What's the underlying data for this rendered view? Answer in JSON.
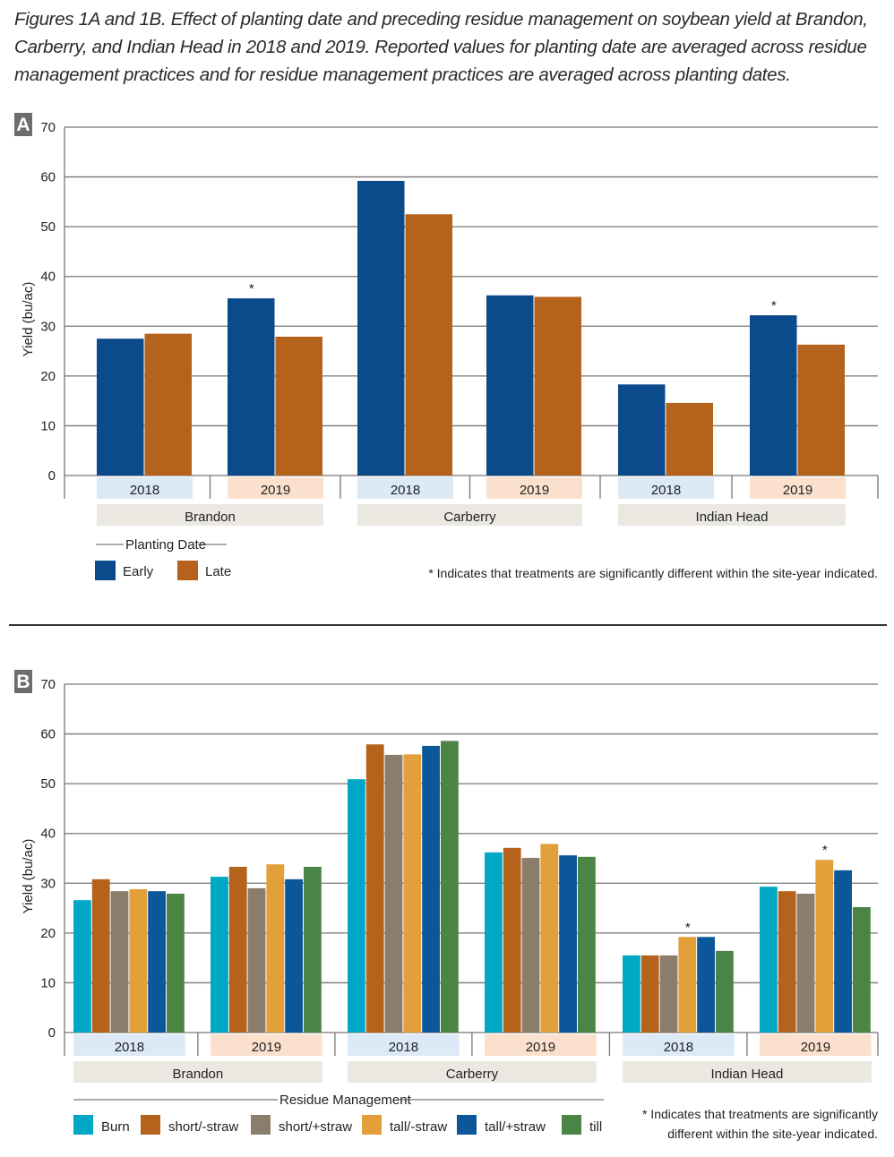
{
  "caption": "Figures 1A and 1B. Effect of planting date and preceding residue management on soybean yield at Brandon, Carberry, and Indian Head in 2018 and 2019. Reported values for planting date are averaged across residue management practices and for residue management practices are averaged across planting dates.",
  "chart_data": [
    {
      "panel": "A",
      "type": "bar",
      "ylabel": "Yield (bu/ac)",
      "ylim": [
        0,
        70
      ],
      "yticks": [
        "0",
        "10",
        "20",
        "30",
        "40",
        "50",
        "60",
        "70"
      ],
      "grid": true,
      "sites": [
        "Brandon",
        "Carberry",
        "Indian Head"
      ],
      "years": [
        "2018",
        "2019"
      ],
      "legend_title": "Planting Date",
      "legend_placement": "bottom-left",
      "series": [
        {
          "name": "Early",
          "color": "#0b4a8b",
          "values": [
            27.5,
            35.6,
            59.2,
            36.2,
            18.3,
            32.2
          ]
        },
        {
          "name": "Late",
          "color": "#b5621c",
          "values": [
            28.5,
            27.9,
            52.5,
            35.9,
            14.6,
            26.3
          ]
        }
      ],
      "significance": [
        1,
        5
      ],
      "note": "* Indicates that treatments are significantly different within the site-year indicated."
    },
    {
      "panel": "B",
      "type": "bar",
      "ylabel": "Yield (bu/ac)",
      "ylim": [
        0,
        70
      ],
      "yticks": [
        "0",
        "10",
        "20",
        "30",
        "40",
        "50",
        "60",
        "70"
      ],
      "grid": true,
      "sites": [
        "Brandon",
        "Carberry",
        "Indian Head"
      ],
      "years": [
        "2018",
        "2019"
      ],
      "legend_title": "Residue Management",
      "legend_placement": "bottom-left",
      "series": [
        {
          "name": "Burn",
          "color": "#00a8c6",
          "values": [
            26.6,
            31.3,
            50.9,
            36.2,
            15.5,
            29.3
          ]
        },
        {
          "name": "short/-straw",
          "color": "#b5621c",
          "values": [
            30.8,
            33.3,
            57.9,
            37.1,
            15.5,
            28.4
          ]
        },
        {
          "name": "short/+straw",
          "color": "#8b7d6b",
          "values": [
            28.4,
            29.0,
            55.8,
            35.1,
            15.5,
            27.9
          ]
        },
        {
          "name": "tall/-straw",
          "color": "#e3a03a",
          "values": [
            28.8,
            33.8,
            55.9,
            37.9,
            19.2,
            34.7
          ]
        },
        {
          "name": "tall/+straw",
          "color": "#0b5799",
          "values": [
            28.4,
            30.8,
            57.6,
            35.6,
            19.2,
            32.6
          ]
        },
        {
          "name": "till",
          "color": "#4b8546",
          "values": [
            27.9,
            33.3,
            58.6,
            35.3,
            16.4,
            25.2
          ]
        }
      ],
      "significance": [
        4,
        5
      ],
      "significance_series": 3,
      "note": [
        "* Indicates that treatments are significantly",
        "different within the site-year indicated."
      ]
    }
  ],
  "colors": {
    "year2018": "#dce9f7",
    "year2019": "#fbe1cd",
    "site": "#ebe8e2",
    "panel_label": "#6d6d6d"
  }
}
